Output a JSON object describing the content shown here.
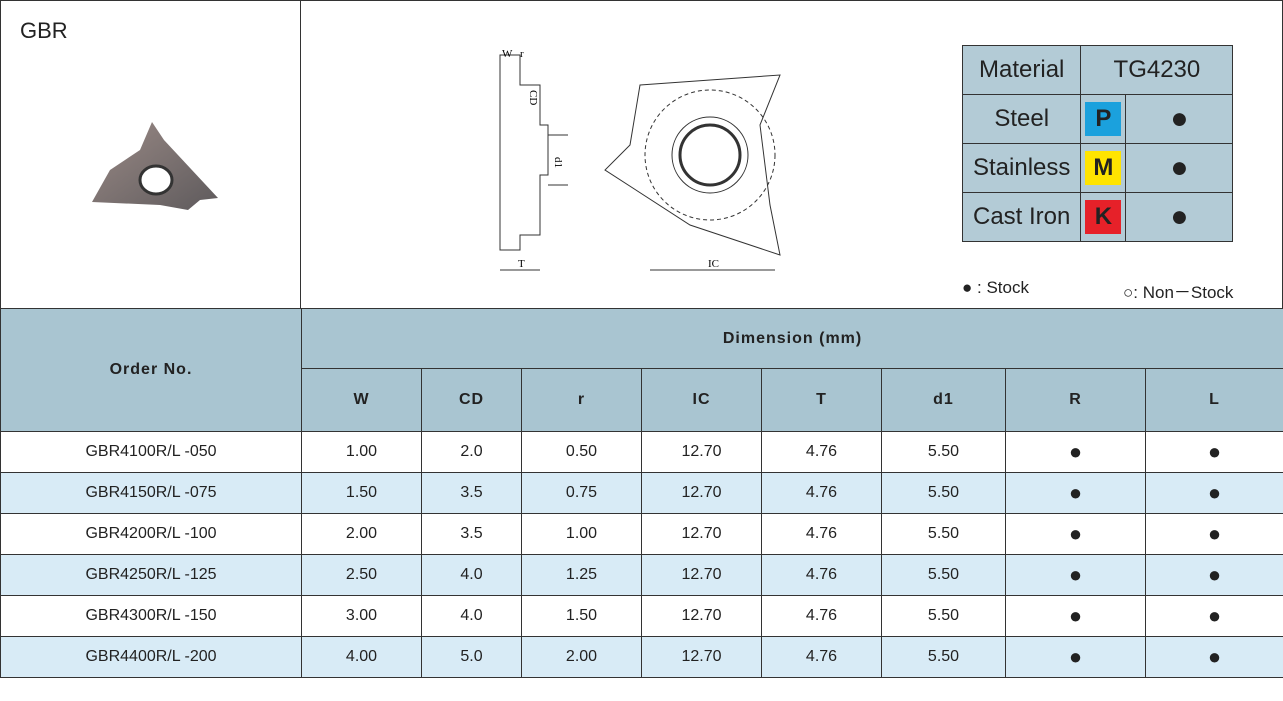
{
  "header": {
    "title": "GBR"
  },
  "drawing": {
    "labels": [
      "W",
      "r",
      "CD",
      "d1",
      "T",
      "IC"
    ]
  },
  "materials": {
    "header": [
      "Material",
      "TG4230"
    ],
    "rows": [
      [
        "Steel",
        "P",
        "●"
      ],
      [
        "Stainless",
        "M",
        "●"
      ],
      [
        "Cast Iron",
        "K",
        "●"
      ]
    ]
  },
  "legend": {
    "stock": "● : Stock",
    "non_stock": "○: Non－Stock"
  },
  "table": {
    "order_header": "Order No.",
    "group_header": "Dimension (mm)",
    "columns": [
      "W",
      "CD",
      "r",
      "IC",
      "T",
      "d1",
      "R",
      "L"
    ],
    "rows": [
      [
        "GBR4100R/L -050",
        "1.00",
        "2.0",
        "0.50",
        "12.70",
        "4.76",
        "5.50",
        "●",
        "●"
      ],
      [
        "GBR4150R/L -075",
        "1.50",
        "3.5",
        "0.75",
        "12.70",
        "4.76",
        "5.50",
        "●",
        "●"
      ],
      [
        "GBR4200R/L -100",
        "2.00",
        "3.5",
        "1.00",
        "12.70",
        "4.76",
        "5.50",
        "●",
        "●"
      ],
      [
        "GBR4250R/L -125",
        "2.50",
        "4.0",
        "1.25",
        "12.70",
        "4.76",
        "5.50",
        "●",
        "●"
      ],
      [
        "GBR4300R/L -150",
        "3.00",
        "4.0",
        "1.50",
        "12.70",
        "4.76",
        "5.50",
        "●",
        "●"
      ],
      [
        "GBR4400R/L -200",
        "4.00",
        "5.0",
        "2.00",
        "12.70",
        "4.76",
        "5.50",
        "●",
        "●"
      ]
    ]
  }
}
